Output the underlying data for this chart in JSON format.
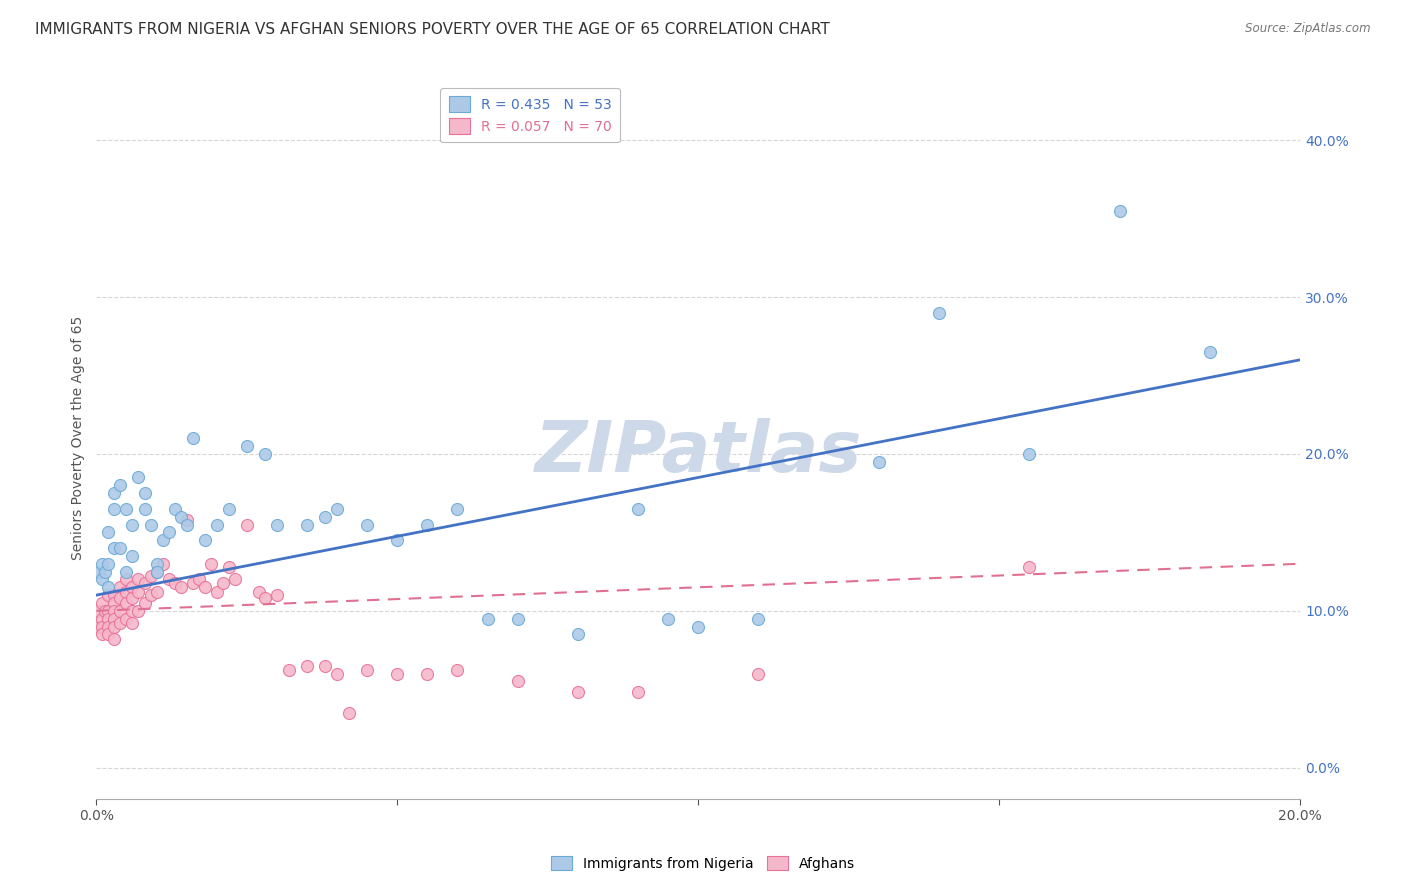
{
  "title": "IMMIGRANTS FROM NIGERIA VS AFGHAN SENIORS POVERTY OVER THE AGE OF 65 CORRELATION CHART",
  "source": "Source: ZipAtlas.com",
  "ylabel": "Seniors Poverty Over the Age of 65",
  "xlim": [
    0.0,
    0.2
  ],
  "ylim": [
    -0.02,
    0.44
  ],
  "nigeria_color": "#adc9e8",
  "afghan_color": "#f5b8cb",
  "nigeria_edge_color": "#6aaad6",
  "afghan_edge_color": "#e87099",
  "line_nigeria_color": "#4472c4",
  "line_afghan_color": "#e07090",
  "R_nigeria": 0.435,
  "N_nigeria": 53,
  "R_afghan": 0.057,
  "N_afghan": 70,
  "legend_label_nigeria": "Immigrants from Nigeria",
  "legend_label_afghan": "Afghans",
  "nigeria_x": [
    0.0005,
    0.001,
    0.001,
    0.0015,
    0.002,
    0.002,
    0.002,
    0.003,
    0.003,
    0.003,
    0.004,
    0.004,
    0.005,
    0.005,
    0.006,
    0.006,
    0.007,
    0.008,
    0.008,
    0.009,
    0.01,
    0.01,
    0.011,
    0.012,
    0.013,
    0.014,
    0.015,
    0.016,
    0.018,
    0.02,
    0.022,
    0.025,
    0.028,
    0.03,
    0.035,
    0.038,
    0.04,
    0.045,
    0.05,
    0.055,
    0.06,
    0.065,
    0.07,
    0.08,
    0.09,
    0.095,
    0.1,
    0.11,
    0.13,
    0.14,
    0.155,
    0.17,
    0.185
  ],
  "nigeria_y": [
    0.125,
    0.13,
    0.12,
    0.125,
    0.115,
    0.13,
    0.15,
    0.14,
    0.165,
    0.175,
    0.14,
    0.18,
    0.125,
    0.165,
    0.135,
    0.155,
    0.185,
    0.165,
    0.175,
    0.155,
    0.13,
    0.125,
    0.145,
    0.15,
    0.165,
    0.16,
    0.155,
    0.21,
    0.145,
    0.155,
    0.165,
    0.205,
    0.2,
    0.155,
    0.155,
    0.16,
    0.165,
    0.155,
    0.145,
    0.155,
    0.165,
    0.095,
    0.095,
    0.085,
    0.165,
    0.095,
    0.09,
    0.095,
    0.195,
    0.29,
    0.2,
    0.355,
    0.265
  ],
  "afghan_x": [
    0.0003,
    0.0005,
    0.001,
    0.001,
    0.001,
    0.001,
    0.0015,
    0.002,
    0.002,
    0.002,
    0.002,
    0.002,
    0.003,
    0.003,
    0.003,
    0.003,
    0.003,
    0.003,
    0.004,
    0.004,
    0.004,
    0.004,
    0.005,
    0.005,
    0.005,
    0.005,
    0.006,
    0.006,
    0.006,
    0.006,
    0.007,
    0.007,
    0.007,
    0.008,
    0.008,
    0.009,
    0.009,
    0.01,
    0.01,
    0.011,
    0.012,
    0.013,
    0.014,
    0.015,
    0.016,
    0.017,
    0.018,
    0.019,
    0.02,
    0.021,
    0.022,
    0.023,
    0.025,
    0.027,
    0.028,
    0.03,
    0.032,
    0.035,
    0.038,
    0.04,
    0.042,
    0.045,
    0.05,
    0.055,
    0.06,
    0.07,
    0.08,
    0.09,
    0.11,
    0.155
  ],
  "afghan_y": [
    0.1,
    0.09,
    0.105,
    0.095,
    0.09,
    0.085,
    0.1,
    0.11,
    0.1,
    0.095,
    0.09,
    0.085,
    0.11,
    0.105,
    0.1,
    0.095,
    0.09,
    0.082,
    0.115,
    0.108,
    0.1,
    0.092,
    0.12,
    0.112,
    0.105,
    0.095,
    0.115,
    0.108,
    0.1,
    0.092,
    0.12,
    0.112,
    0.1,
    0.118,
    0.105,
    0.122,
    0.11,
    0.125,
    0.112,
    0.13,
    0.12,
    0.118,
    0.115,
    0.158,
    0.118,
    0.12,
    0.115,
    0.13,
    0.112,
    0.118,
    0.128,
    0.12,
    0.155,
    0.112,
    0.108,
    0.11,
    0.062,
    0.065,
    0.065,
    0.06,
    0.035,
    0.062,
    0.06,
    0.06,
    0.062,
    0.055,
    0.048,
    0.048,
    0.06,
    0.128
  ],
  "background_color": "#ffffff",
  "grid_color": "#cccccc",
  "watermark_text": "ZIPatlas",
  "watermark_color": "#cdd8e8",
  "marker_size": 75,
  "title_fontsize": 11,
  "axis_label_fontsize": 10,
  "tick_label_fontsize": 10,
  "legend_fontsize": 10
}
